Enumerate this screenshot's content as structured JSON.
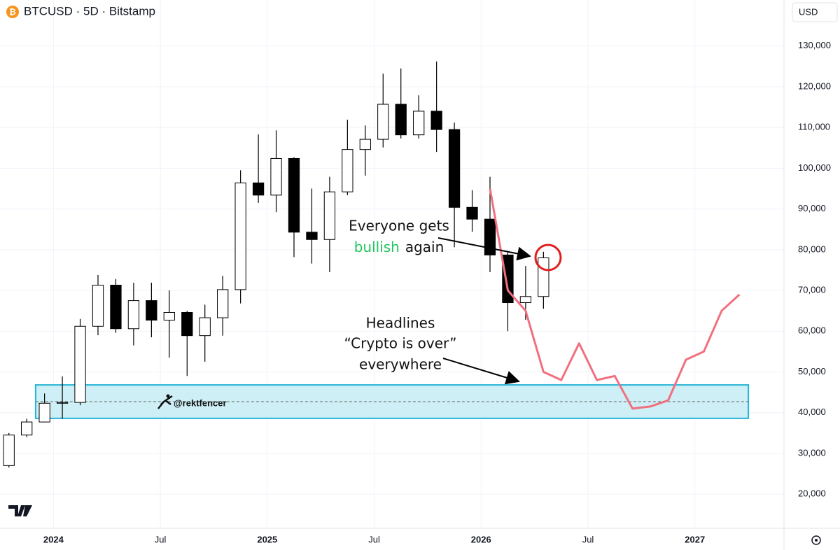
{
  "chart_data": {
    "type": "candlestick",
    "title": "BTCUSD · 5D · Bitstamp",
    "currency": "USD",
    "watermark": "@rektfencer",
    "color": "#000000",
    "x": [
      "2023-10",
      "2023-11",
      "2023-12",
      "2024-01",
      "2024-02",
      "2024-03",
      "2024-04",
      "2024-05",
      "2024-06",
      "2024-07",
      "2024-08",
      "2024-09",
      "2024-10",
      "2024-11",
      "2024-12",
      "2025-01",
      "2025-02",
      "2025-03",
      "2025-04",
      "2025-05",
      "2025-06",
      "2025-07",
      "2025-08",
      "2025-09",
      "2025-10",
      "2025-11",
      "2025-12",
      "2026-01",
      "2026-02",
      "2026-03",
      "2026-04"
    ],
    "open": [
      27000,
      34500,
      37700,
      42300,
      42500,
      61200,
      71300,
      60600,
      67500,
      62700,
      64600,
      58900,
      63300,
      70200,
      96400,
      93400,
      102400,
      84300,
      82500,
      94200,
      104600,
      107100,
      115700,
      108200,
      114000,
      109500,
      90400,
      87500,
      78700,
      67000,
      68500
    ],
    "high": [
      35000,
      38500,
      44700,
      48900,
      63000,
      73800,
      72800,
      71900,
      71900,
      70000,
      65000,
      66500,
      73600,
      99500,
      108300,
      109300,
      102700,
      95000,
      97900,
      111900,
      110500,
      123200,
      124500,
      117900,
      126200,
      111200,
      94600,
      97900,
      79500,
      76000,
      79500
    ],
    "low": [
      26500,
      34000,
      37600,
      38500,
      41800,
      59000,
      59600,
      56500,
      58500,
      53500,
      49000,
      52500,
      58900,
      66800,
      91500,
      89200,
      78200,
      76600,
      74500,
      93400,
      98200,
      105100,
      107300,
      107300,
      104000,
      80600,
      84400,
      74500,
      60000,
      62800,
      65500
    ],
    "close": [
      34500,
      37700,
      42300,
      42500,
      61200,
      71300,
      60600,
      67500,
      62700,
      64600,
      58900,
      63300,
      70200,
      96400,
      93400,
      102400,
      84300,
      82500,
      94200,
      104600,
      107100,
      115700,
      108200,
      114000,
      109500,
      90400,
      87500,
      78700,
      67000,
      68500,
      78000
    ],
    "projection": {
      "color": "#f0707f",
      "x": [
        "2026-01",
        "2026-02",
        "2026-03",
        "2026-04",
        "2026-05",
        "2026-06",
        "2026-07",
        "2026-08",
        "2026-09",
        "2026-10",
        "2026-11",
        "2026-12",
        "2027-01",
        "2027-02",
        "2027-03"
      ],
      "values": [
        95000,
        70000,
        65000,
        50000,
        48000,
        57000,
        48000,
        49000,
        41000,
        41500,
        43000,
        53000,
        55000,
        65000,
        69000
      ]
    },
    "zone": {
      "x": [
        "2023-12",
        "2027-04"
      ],
      "y": [
        38600,
        46800
      ],
      "level": 42700,
      "fill": "#cdeff5",
      "stroke": "#25b5d5"
    },
    "xlim": [
      "2023-10",
      "2027-06"
    ],
    "xticks": [
      {
        "value": "2024-01",
        "label": "2024"
      },
      {
        "value": "2024-07",
        "label": "Jul"
      },
      {
        "value": "2025-01",
        "label": "2025"
      },
      {
        "value": "2025-07",
        "label": "Jul"
      },
      {
        "value": "2026-01",
        "label": "2026"
      },
      {
        "value": "2026-07",
        "label": "Jul"
      },
      {
        "value": "2027-01",
        "label": "2027"
      }
    ],
    "ylim": [
      11600,
      141300
    ],
    "yticks": [
      {
        "value": 20000,
        "label": "20,000"
      },
      {
        "value": 30000,
        "label": "30,000"
      },
      {
        "value": 40000,
        "label": "40,000"
      },
      {
        "value": 50000,
        "label": "50,000"
      },
      {
        "value": 60000,
        "label": "60,000"
      },
      {
        "value": 70000,
        "label": "70,000"
      },
      {
        "value": 80000,
        "label": "80,000"
      },
      {
        "value": 90000,
        "label": "90,000"
      },
      {
        "value": 100000,
        "label": "100,000"
      },
      {
        "value": 110000,
        "label": "110,000"
      },
      {
        "value": 120000,
        "label": "120,000"
      },
      {
        "value": 130000,
        "label": "130,000"
      }
    ],
    "grid": true,
    "annotations": {
      "bullish_call": {
        "line1": "Everyone gets",
        "highlight": "bullish",
        "highlight_color": "#22c55e",
        "rest": "again"
      },
      "headlines": {
        "line1": "Headlines",
        "quote": "“Crypto is over”",
        "quote_color": "#f23645",
        "line3": "everywhere"
      }
    }
  }
}
